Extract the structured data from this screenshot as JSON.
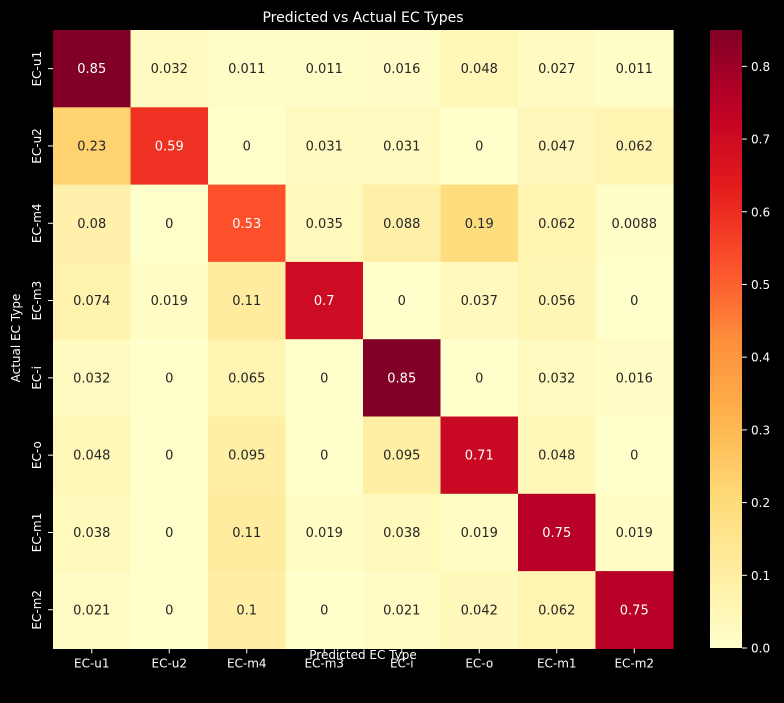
{
  "chart_data": {
    "type": "heatmap",
    "title": "Predicted vs Actual EC Types",
    "xlabel": "Predicted EC Type",
    "ylabel": "Actual EC Type",
    "x_categories": [
      "EC-u1",
      "EC-u2",
      "EC-m4",
      "EC-m3",
      "EC-i",
      "EC-o",
      "EC-m1",
      "EC-m2"
    ],
    "y_categories": [
      "EC-u1",
      "EC-u2",
      "EC-m4",
      "EC-m3",
      "EC-i",
      "EC-o",
      "EC-m1",
      "EC-m2"
    ],
    "values": [
      [
        0.85,
        0.032,
        0.011,
        0.011,
        0.016,
        0.048,
        0.027,
        0.011
      ],
      [
        0.23,
        0.59,
        0,
        0.031,
        0.031,
        0,
        0.047,
        0.062
      ],
      [
        0.08,
        0,
        0.53,
        0.035,
        0.088,
        0.19,
        0.062,
        0.0088
      ],
      [
        0.074,
        0.019,
        0.11,
        0.7,
        0,
        0.037,
        0.056,
        0
      ],
      [
        0.032,
        0,
        0.065,
        0,
        0.85,
        0,
        0.032,
        0.016
      ],
      [
        0.048,
        0,
        0.095,
        0,
        0.095,
        0.71,
        0.048,
        0
      ],
      [
        0.038,
        0,
        0.11,
        0.019,
        0.038,
        0.019,
        0.75,
        0.019
      ],
      [
        0.021,
        0,
        0.1,
        0,
        0.021,
        0.042,
        0.062,
        0.75
      ]
    ],
    "colormap": "YlOrRd",
    "colorbar": {
      "range": [
        0,
        0.85
      ],
      "ticks": [
        0.0,
        0.1,
        0.2,
        0.3,
        0.4,
        0.5,
        0.6,
        0.7,
        0.8
      ],
      "tick_labels": [
        "0.0",
        "0.1",
        "0.2",
        "0.3",
        "0.4",
        "0.5",
        "0.6",
        "0.7",
        "0.8"
      ]
    },
    "annotated": true,
    "grid": false,
    "colors": {
      "background": "#000000",
      "text": "#ffffff",
      "annotation_dark": "#262626",
      "annotation_light": "#ffffff"
    }
  }
}
